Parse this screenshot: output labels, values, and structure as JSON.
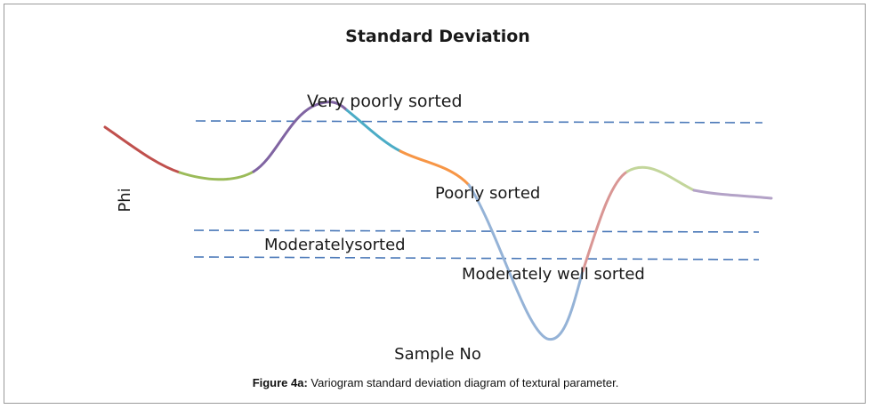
{
  "chart_data": {
    "type": "line",
    "title": "Standard Deviation",
    "xlabel": "Sample No",
    "ylabel": "Phi",
    "grid": false,
    "legend": "none",
    "reference_lines": [
      {
        "label": "Very poorly sorted"
      },
      {
        "label": "Poorly sorted"
      },
      {
        "label": "Moderatelysorted"
      },
      {
        "label": "Moderately well sorted"
      }
    ],
    "colors": {
      "reference_line": "#4a78b8",
      "segments": [
        "#c0504d",
        "#9bbb59",
        "#8064a2",
        "#4bacc6",
        "#f79646",
        "#95b3d7",
        "#d99694",
        "#c3d69b",
        "#b3a2c7"
      ]
    }
  },
  "caption": {
    "prefix": "Figure 4a:",
    "text": " Variogram standard deviation diagram of textural parameter."
  }
}
